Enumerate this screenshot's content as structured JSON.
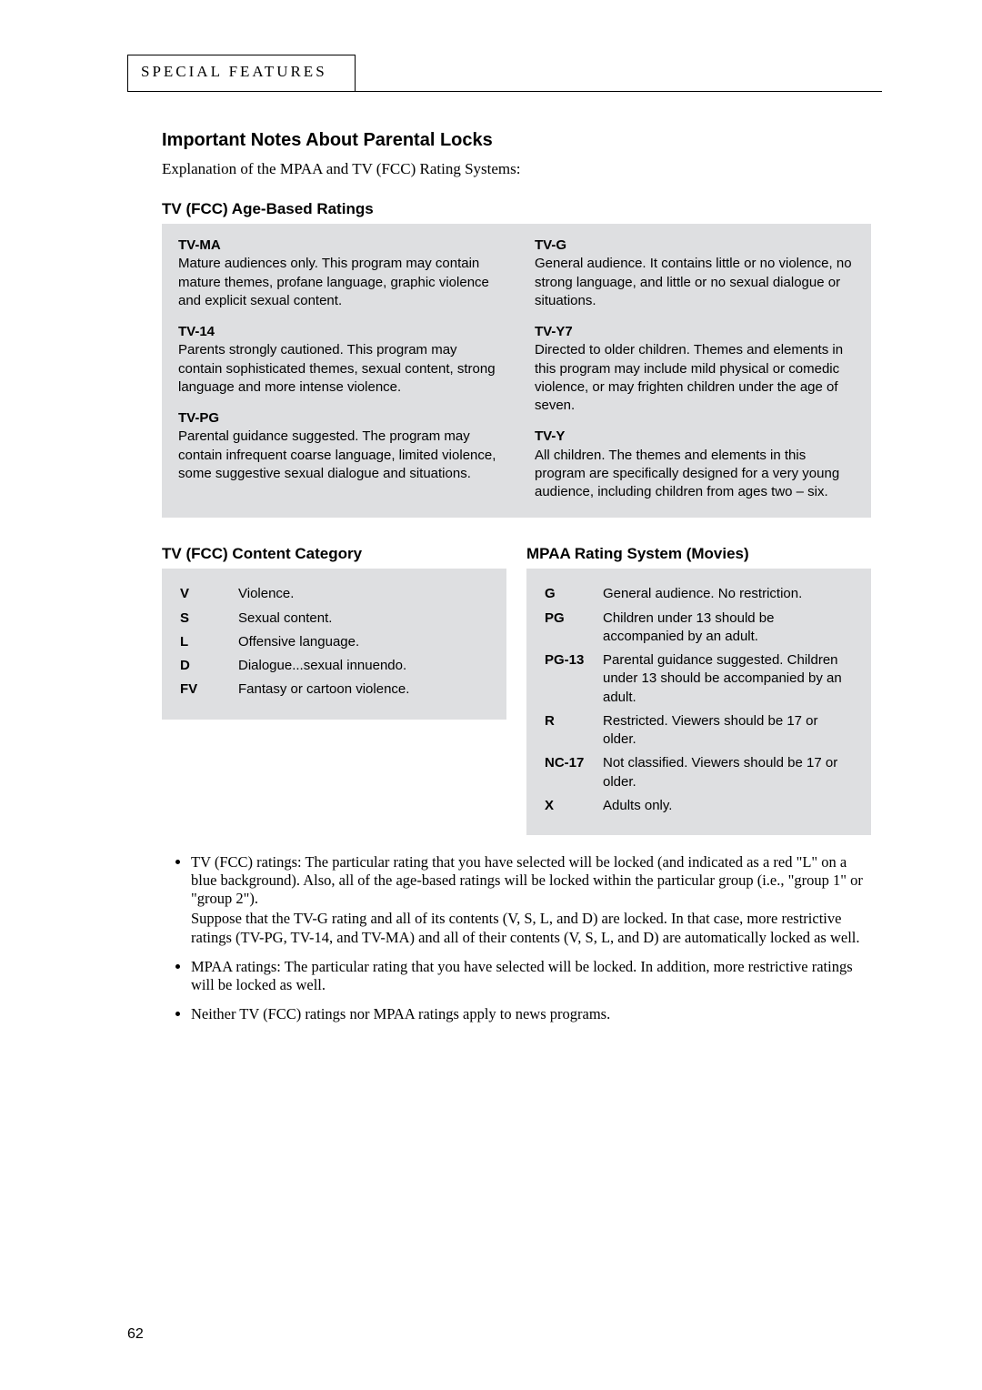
{
  "page_number": "62",
  "section_tab": "SPECIAL FEATURES",
  "main_title": "Important Notes About Parental Locks",
  "subtitle": "Explanation of the MPAA and TV (FCC) Rating Systems:",
  "age_based": {
    "title": "TV (FCC) Age-Based Ratings",
    "left": [
      {
        "head": "TV-MA",
        "body": "Mature audiences only. This program may contain mature themes, profane language, graphic violence and explicit sexual content."
      },
      {
        "head": "TV-14",
        "body": "Parents strongly cautioned. This program may contain sophisticated themes, sexual content, strong language and more intense violence."
      },
      {
        "head": "TV-PG",
        "body": "Parental guidance suggested. The program may contain infrequent coarse language, limited violence, some suggestive sexual dialogue and situations."
      }
    ],
    "right": [
      {
        "head": "TV-G",
        "body": "General audience.  It contains little or no violence, no strong language, and little or no sexual dialogue or situations."
      },
      {
        "head": "TV-Y7",
        "body": "Directed to older children. Themes and elements in this program may include mild physical or comedic violence, or may frighten children under the age of seven."
      },
      {
        "head": "TV-Y",
        "body": "All children. The themes and elements in this program are specifically designed for a very young audience, including children from ages two – six."
      }
    ]
  },
  "content_cat": {
    "title": "TV (FCC) Content Category",
    "rows": [
      {
        "k": "V",
        "v": "Violence."
      },
      {
        "k": "S",
        "v": "Sexual content."
      },
      {
        "k": "L",
        "v": "Offensive language."
      },
      {
        "k": "D",
        "v": "Dialogue...sexual innuendo."
      },
      {
        "k": "FV",
        "v": "Fantasy or cartoon violence."
      }
    ]
  },
  "mpaa": {
    "title": "MPAA Rating System (Movies)",
    "rows": [
      {
        "k": "G",
        "v": "General audience. No restriction."
      },
      {
        "k": "PG",
        "v": "Children under 13 should be accompanied by an adult."
      },
      {
        "k": "PG-13",
        "v": "Parental guidance suggested. Children under 13 should be accompanied by an adult."
      },
      {
        "k": "R",
        "v": "Restricted. Viewers should be 17 or older."
      },
      {
        "k": "NC-17",
        "v": "Not classified. Viewers should be 17 or older."
      },
      {
        "k": "X",
        "v": "Adults only."
      }
    ]
  },
  "bullets": {
    "b1a": "TV (FCC) ratings: The particular rating that you have selected will be locked (and indicated as a red \"L\" on a blue background). Also, all of the age-based ratings will be locked within the particular group (i.e., \"group 1\" or \"group 2\").",
    "b1b": "Suppose that the TV-G rating and all of its contents (V, S, L, and D) are locked. In that case, more restrictive ratings (TV-PG, TV-14, and TV-MA) and all of their contents (V, S, L, and D) are automatically locked as well.",
    "b2": "MPAA ratings: The particular rating that you have selected will be locked. In addition, more restrictive ratings will be locked as well.",
    "b3": "Neither TV (FCC) ratings nor MPAA ratings apply to news programs."
  }
}
